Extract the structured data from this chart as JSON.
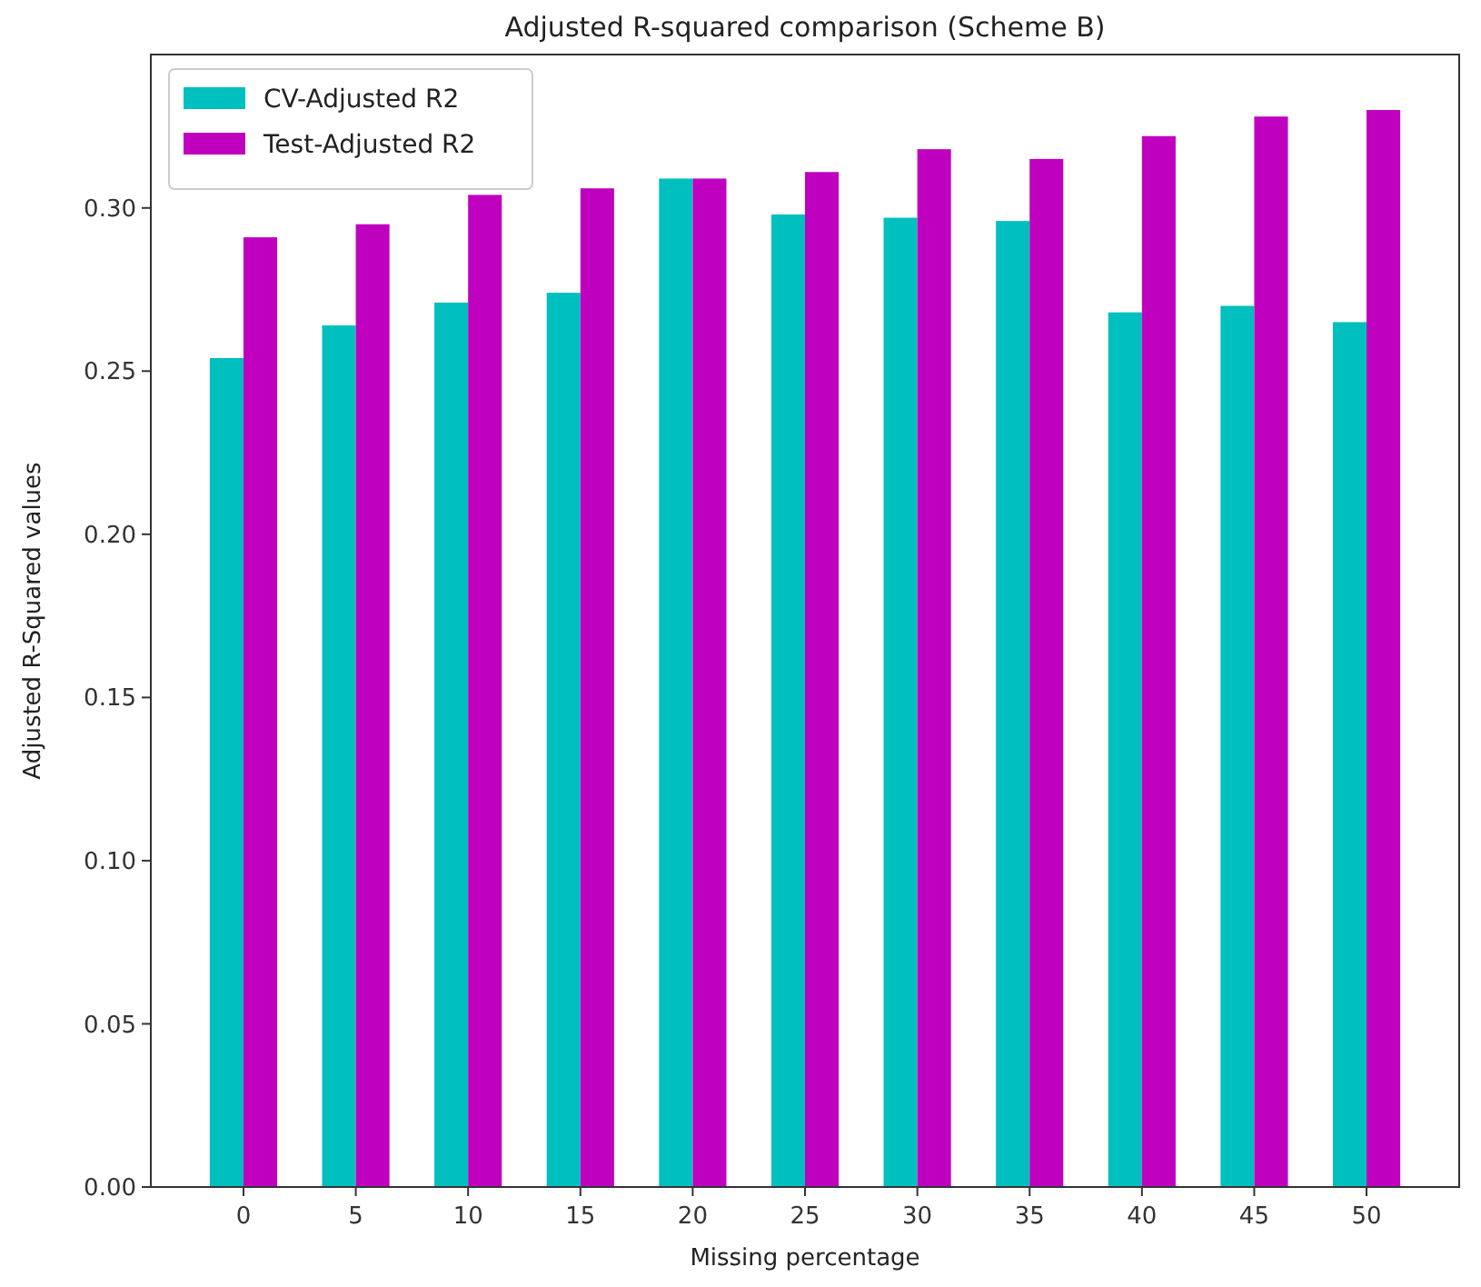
{
  "chart_data": {
    "type": "bar",
    "title": "Adjusted R-squared comparison (Scheme B)",
    "xlabel": "Missing percentage",
    "ylabel": "Adjusted R-Squared values",
    "categories": [
      "0",
      "5",
      "10",
      "15",
      "20",
      "25",
      "30",
      "35",
      "40",
      "45",
      "50"
    ],
    "series": [
      {
        "name": "CV-Adjusted R2",
        "color": "#00bfbf",
        "values": [
          0.254,
          0.264,
          0.271,
          0.274,
          0.309,
          0.298,
          0.297,
          0.296,
          0.268,
          0.27,
          0.265
        ]
      },
      {
        "name": "Test-Adjusted R2",
        "color": "#bf00bf",
        "values": [
          0.291,
          0.295,
          0.304,
          0.306,
          0.309,
          0.311,
          0.318,
          0.315,
          0.322,
          0.328,
          0.33
        ]
      }
    ],
    "ylim": [
      0,
      0.347
    ],
    "yticks": [
      {
        "value": 0,
        "label": "0.00"
      },
      {
        "value": 0.05,
        "label": "0.05"
      },
      {
        "value": 0.1,
        "label": "0.10"
      },
      {
        "value": 0.15,
        "label": "0.15"
      },
      {
        "value": 0.2,
        "label": "0.20"
      },
      {
        "value": 0.25,
        "label": "0.25"
      },
      {
        "value": 0.3,
        "label": "0.30"
      }
    ],
    "grid": false,
    "legend": "top left"
  }
}
